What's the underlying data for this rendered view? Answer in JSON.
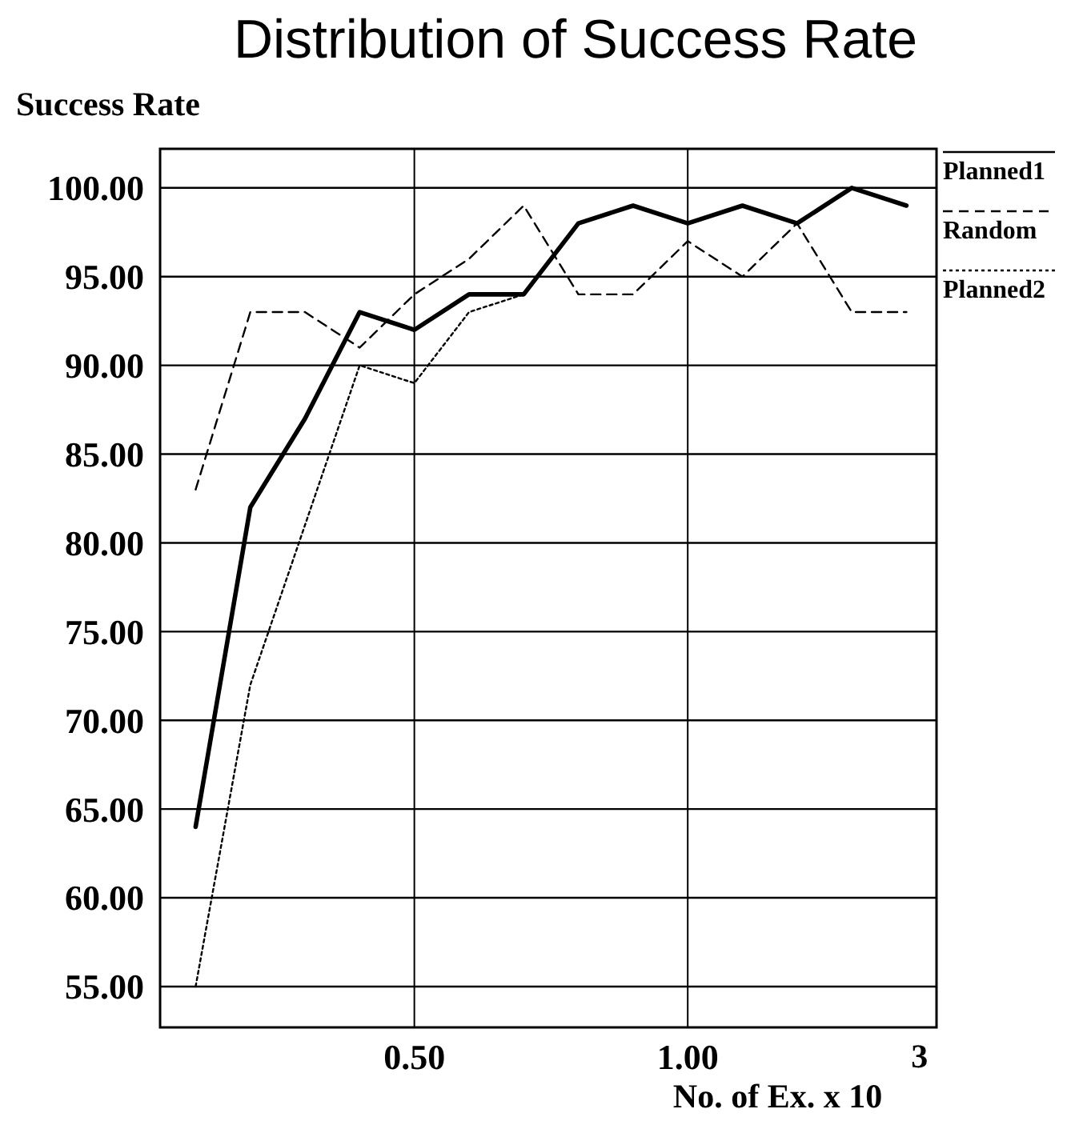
{
  "chart_data": {
    "type": "line",
    "title": "Distribution of Success Rate",
    "ylabel": "Success Rate",
    "xlabel": "No. of Ex. x 10$^{3}$",
    "x": [
      0.1,
      0.2,
      0.3,
      0.4,
      0.5,
      0.6,
      0.7,
      0.8,
      0.9,
      1.0,
      1.1,
      1.2,
      1.3,
      1.4
    ],
    "series": [
      {
        "name": "Planned1",
        "color": "#000000",
        "line_style": "solid",
        "values": [
          64,
          82,
          87,
          93,
          92,
          94,
          94,
          98,
          99,
          98,
          99,
          98,
          100,
          99
        ]
      },
      {
        "name": "Random",
        "color": "#000000",
        "line_style": "dashed",
        "values": [
          83,
          93,
          93,
          91,
          94,
          96,
          99,
          94,
          94,
          97,
          95,
          98,
          93,
          93
        ]
      },
      {
        "name": "Planned2",
        "color": "#000000",
        "line_style": "dotted",
        "values": [
          55,
          72,
          81,
          90,
          89,
          93,
          94,
          null,
          null,
          null,
          null,
          null,
          null,
          null
        ]
      }
    ],
    "xlim": [
      0.035,
      1.455
    ],
    "xticks": [
      {
        "value": 0.5,
        "label": "0.50"
      },
      {
        "value": 1.0,
        "label": "1.00"
      }
    ],
    "ylim": [
      52.7,
      102.2
    ],
    "yticks": [
      {
        "value": 55,
        "label": "55.00"
      },
      {
        "value": 60,
        "label": "60.00"
      },
      {
        "value": 65,
        "label": "65.00"
      },
      {
        "value": 70,
        "label": "70.00"
      },
      {
        "value": 75,
        "label": "75.00"
      },
      {
        "value": 80,
        "label": "80.00"
      },
      {
        "value": 85,
        "label": "85.00"
      },
      {
        "value": 90,
        "label": "90.00"
      },
      {
        "value": 95,
        "label": "95.00"
      },
      {
        "value": 100,
        "label": "100.00"
      }
    ],
    "grid": true,
    "legend": "right",
    "marker": "none"
  }
}
